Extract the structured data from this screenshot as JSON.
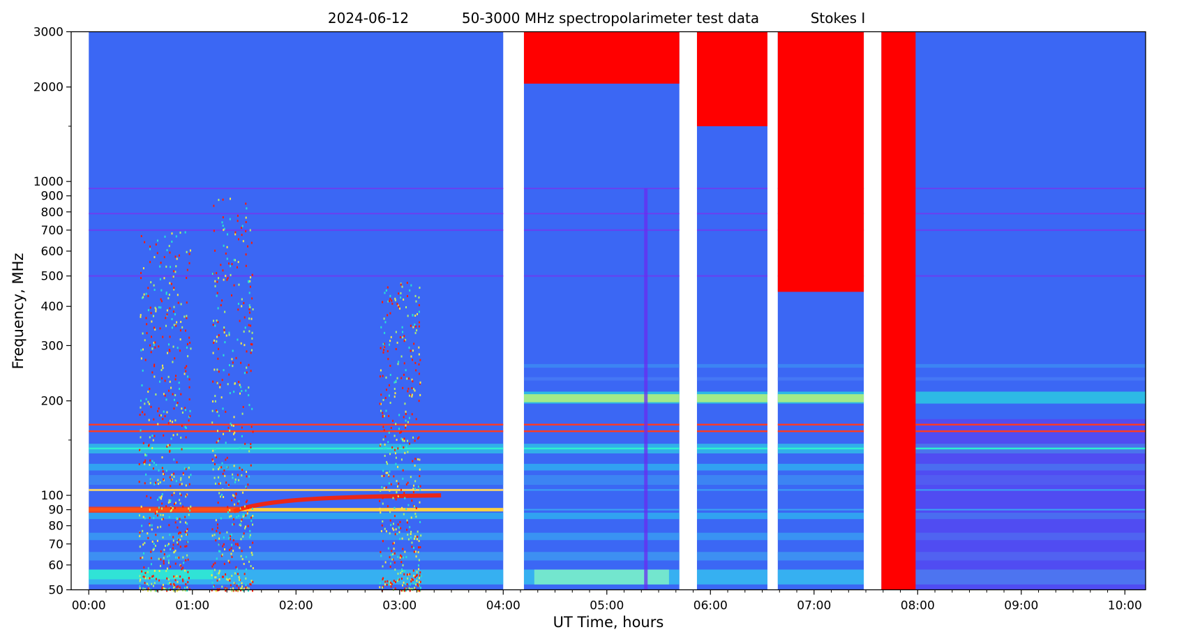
{
  "chart_data": {
    "type": "heatmap",
    "title": "2024-06-12          50-3000 MHz spectropolarimeter test data          Stokes I",
    "title_parts": [
      "2024-06-12",
      "50-3000 MHz spectropolarimeter test data",
      "Stokes I"
    ],
    "xlabel": "UT Time, hours",
    "ylabel": "Frequency, MHz",
    "x_unit": "hours UT",
    "xlim": [
      -0.17,
      10.2
    ],
    "ylim": [
      50,
      3000
    ],
    "y_scale": "log",
    "grid": false,
    "legend": "none",
    "colormap": "rainbow",
    "x_ticks": [
      {
        "value": 0,
        "label": "00:00"
      },
      {
        "value": 1,
        "label": "01:00"
      },
      {
        "value": 2,
        "label": "02:00"
      },
      {
        "value": 3,
        "label": "03:00"
      },
      {
        "value": 4,
        "label": "04:00"
      },
      {
        "value": 5,
        "label": "05:00"
      },
      {
        "value": 6,
        "label": "06:00"
      },
      {
        "value": 7,
        "label": "07:00"
      },
      {
        "value": 8,
        "label": "08:00"
      },
      {
        "value": 9,
        "label": "09:00"
      },
      {
        "value": 10,
        "label": "10:00"
      }
    ],
    "y_ticks": [
      {
        "value": 50,
        "label": "50"
      },
      {
        "value": 60,
        "label": "60"
      },
      {
        "value": 70,
        "label": "70"
      },
      {
        "value": 80,
        "label": "80"
      },
      {
        "value": 90,
        "label": "90"
      },
      {
        "value": 100,
        "label": "100"
      },
      {
        "value": 200,
        "label": "200"
      },
      {
        "value": 300,
        "label": "300"
      },
      {
        "value": 400,
        "label": "400"
      },
      {
        "value": 500,
        "label": "500"
      },
      {
        "value": 600,
        "label": "600"
      },
      {
        "value": 700,
        "label": "700"
      },
      {
        "value": 800,
        "label": "800"
      },
      {
        "value": 900,
        "label": "900"
      },
      {
        "value": 1000,
        "label": "1000"
      },
      {
        "value": 2000,
        "label": "2000"
      },
      {
        "value": 3000,
        "label": "3000"
      }
    ],
    "y_minor_ticks": [
      150,
      1500
    ],
    "data_segments": [
      {
        "start": 0.0,
        "end": 4.0
      },
      {
        "start": 4.2,
        "end": 5.7
      },
      {
        "start": 5.87,
        "end": 6.55
      },
      {
        "start": 6.65,
        "end": 7.48
      },
      {
        "start": 7.65,
        "end": 10.2
      }
    ],
    "saturated_regions": [
      {
        "start": 4.2,
        "end": 5.7,
        "freq_low": 2050,
        "freq_high": 3000
      },
      {
        "start": 5.87,
        "end": 6.55,
        "freq_low": 1500,
        "freq_high": 3000
      },
      {
        "start": 6.65,
        "end": 7.48,
        "freq_low": 445,
        "freq_high": 3000
      },
      {
        "start": 7.65,
        "end": 7.98,
        "freq_low": 50,
        "freq_high": 3000
      }
    ],
    "interference_lines_mhz": [
      950,
      790,
      700,
      500,
      168,
      160,
      141,
      104,
      90
    ],
    "burst_activity": [
      {
        "start": 0.48,
        "end": 0.98,
        "freq_low": 50,
        "freq_high": 700
      },
      {
        "start": 1.18,
        "end": 1.58,
        "freq_low": 50,
        "freq_high": 900
      },
      {
        "start": 2.8,
        "end": 3.2,
        "freq_low": 50,
        "freq_high": 480
      }
    ],
    "colors": {
      "background": "#3b67f4",
      "saturated": "#ff0000",
      "hot": "#ff3000",
      "warm": "#f6e94a",
      "cool": "#28e3d2",
      "cold": "#6a2cf0"
    }
  }
}
